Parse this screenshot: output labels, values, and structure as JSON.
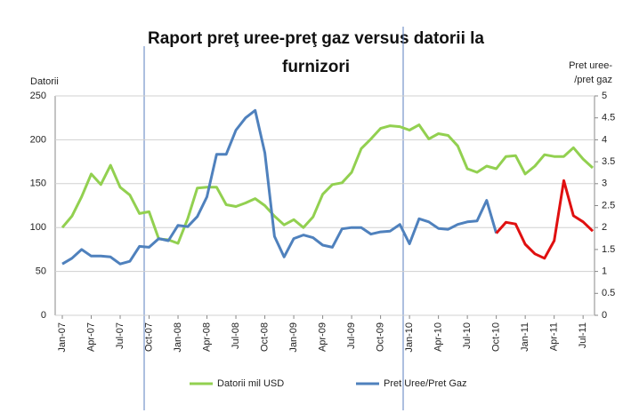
{
  "chart_data": {
    "type": "line",
    "title": [
      "Raport preţ uree-preţ gaz versus datorii la",
      "furnizori"
    ],
    "y_label": "Datorii",
    "y2_label": [
      "Pret uree-",
      "/pret gaz"
    ],
    "categories": [
      "Jan-07",
      null,
      null,
      "Apr-07",
      null,
      null,
      "Jul-07",
      null,
      null,
      "Oct-07",
      null,
      null,
      "Jan-08",
      null,
      null,
      "Apr-08",
      null,
      null,
      "Jul-08",
      null,
      null,
      "Oct-08",
      null,
      null,
      "Jan-09",
      null,
      null,
      "Apr-09",
      null,
      null,
      "Jul-09",
      null,
      null,
      "Oct-09",
      null,
      null,
      "Jan-10",
      null,
      null,
      "Apr-10",
      null,
      null,
      "Jul-10",
      null,
      null,
      "Oct-10",
      null,
      null,
      "Jan-11",
      null,
      null,
      "Apr-11",
      null,
      null,
      "Jul-11",
      null
    ],
    "series": [
      {
        "name": "Datorii mil USD",
        "color": "#92d050",
        "values": [
          100,
          113,
          135,
          161,
          149,
          171,
          146,
          137,
          116,
          118,
          87,
          86,
          82,
          110,
          145,
          146,
          146,
          126,
          124,
          128,
          133,
          125,
          113,
          103,
          109,
          100,
          112,
          138,
          149,
          151,
          163,
          190,
          201,
          213,
          216,
          215,
          211,
          217,
          201,
          207,
          205,
          193,
          167,
          163,
          170,
          167,
          181,
          182,
          161,
          170,
          183,
          181,
          181,
          191,
          178,
          168
        ]
      },
      {
        "name": "Pret Uree/Pret Gaz",
        "color": "#4f81bd",
        "axis": "y2",
        "values": [
          1.17,
          1.3,
          1.5,
          1.35,
          1.35,
          1.33,
          1.17,
          1.23,
          1.57,
          1.55,
          1.75,
          1.7,
          2.05,
          2.02,
          2.25,
          2.7,
          3.67,
          3.67,
          4.22,
          4.5,
          4.67,
          3.7,
          1.8,
          1.33,
          1.75,
          1.83,
          1.77,
          1.6,
          1.55,
          1.97,
          2.0,
          2.0,
          1.85,
          1.9,
          1.92,
          2.07,
          1.63,
          2.2,
          2.13,
          1.98,
          1.96,
          2.07,
          2.13,
          2.15,
          2.62,
          1.87,
          null,
          null,
          null,
          null,
          null,
          null,
          null,
          null,
          null,
          null
        ]
      },
      {
        "color": "#e01010",
        "axis": "y2",
        "values": [
          null,
          null,
          null,
          null,
          null,
          null,
          null,
          null,
          null,
          null,
          null,
          null,
          null,
          null,
          null,
          null,
          null,
          null,
          null,
          null,
          null,
          null,
          null,
          null,
          null,
          null,
          null,
          null,
          null,
          null,
          null,
          null,
          null,
          null,
          null,
          null,
          null,
          null,
          null,
          null,
          null,
          null,
          null,
          null,
          null,
          1.87,
          2.12,
          2.08,
          1.62,
          1.4,
          1.3,
          1.7,
          3.07,
          2.27,
          2.13,
          1.92
        ]
      }
    ],
    "ylim": [
      0,
      250
    ],
    "yticks": [
      0,
      50,
      100,
      150,
      200,
      250
    ],
    "y2lim": [
      0,
      5
    ],
    "y2ticks": [
      0,
      0.5,
      1,
      1.5,
      2,
      2.5,
      3,
      3.5,
      4,
      4.5,
      5
    ],
    "grid": true,
    "legend": "bottom"
  }
}
